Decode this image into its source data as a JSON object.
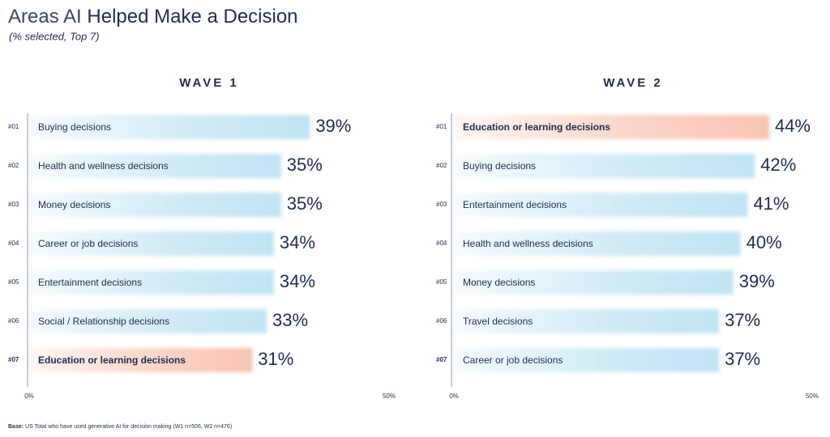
{
  "title": [
    "Areas AI",
    "Helped Make a Decision"
  ],
  "subtitle": "(% selected, Top 7)",
  "footnote": {
    "label": "Base:",
    "text": "US Total who have used generative AI for decision making (W1 n=506, W2 n=476)"
  },
  "chart_data": [
    {
      "type": "bar",
      "title": "WAVE 1",
      "ranks": [
        "#01",
        "#02",
        "#03",
        "#04",
        "#05",
        "#06",
        "#07"
      ],
      "categories": [
        "Buying decisions",
        "Health and wellness decisions",
        "Money decisions",
        "Career or job decisions",
        "Entertainment decisions",
        "Social / Relationship decisions",
        "Education or learning decisions"
      ],
      "values": [
        39,
        35,
        35,
        34,
        34,
        33,
        31
      ],
      "value_labels": [
        "39%",
        "35%",
        "35%",
        "34%",
        "34%",
        "33%",
        "31%"
      ],
      "colors": [
        "#bfe4f4",
        "#bfe4f4",
        "#bfe4f4",
        "#bfe4f4",
        "#bfe4f4",
        "#bfe4f4",
        "#f9c4b2"
      ],
      "xlim": [
        0,
        50
      ],
      "xticks": [
        {
          "value": 0,
          "label": "0%"
        },
        {
          "value": 50,
          "label": "50%"
        }
      ]
    },
    {
      "type": "bar",
      "title": "WAVE 2",
      "ranks": [
        "#01",
        "#02",
        "#03",
        "#04",
        "#05",
        "#06",
        "#07"
      ],
      "categories": [
        "Education or learning decisions",
        "Buying decisions",
        "Entertainment decisions",
        "Health and wellness decisions",
        "Money decisions",
        "Travel decisions",
        "Career or job decisions"
      ],
      "values": [
        44,
        42,
        41,
        40,
        39,
        37,
        37
      ],
      "value_labels": [
        "44%",
        "42%",
        "41%",
        "40%",
        "39%",
        "37%",
        "37%"
      ],
      "colors": [
        "#f9c4b2",
        "#bfe4f4",
        "#bfe4f4",
        "#bfe4f4",
        "#bfe4f4",
        "#bfe4f4",
        "#bfe4f4"
      ],
      "xlim": [
        0,
        50
      ],
      "xticks": [
        {
          "value": 0,
          "label": "0%"
        },
        {
          "value": 50,
          "label": "50%"
        }
      ]
    }
  ]
}
